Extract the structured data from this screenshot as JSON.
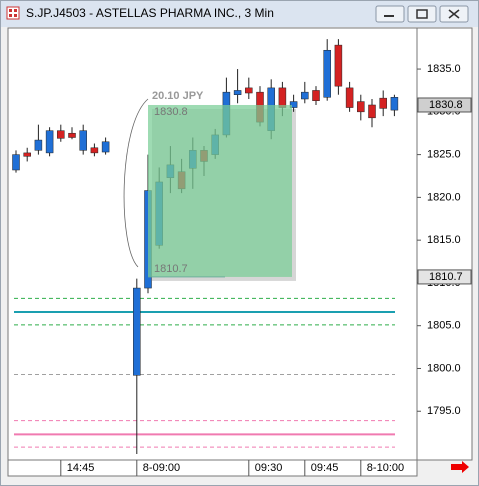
{
  "chart_data": {
    "type": "candlestick",
    "title": "S.JP.J4503 - ASTELLAS PHARMA INC., 3 Min",
    "categories": [
      null,
      null,
      null,
      null,
      "14:45",
      null,
      null,
      null,
      null,
      "8-09:00",
      null,
      null,
      null,
      null,
      null,
      null,
      null,
      null,
      null,
      "09:30",
      null,
      null,
      null,
      null,
      "09:45",
      null,
      null,
      null,
      null,
      "8-10:00",
      null,
      null,
      null
    ],
    "open": [
      1823.2,
      1825.2,
      1825.5,
      1825.2,
      1827.8,
      1827.5,
      1825.5,
      1825.8,
      1825.3,
      1799.2,
      1809.4,
      1814.4,
      1822.3,
      1823,
      1823.4,
      1825.5,
      1825,
      1827.3,
      1832,
      1832.8,
      1832.3,
      1827.8,
      1832.8,
      1830.5,
      1831.5,
      1832.5,
      1831.7,
      1837.8,
      1832.8,
      1831.2,
      1830.8,
      1831.6,
      1830.2
    ],
    "high": [
      1825.5,
      1825.8,
      1828.5,
      1828.2,
      1828.5,
      1828.2,
      1828.5,
      1826.3,
      1827,
      1810.5,
      1825,
      1823.5,
      1826,
      1824.5,
      1827,
      1826,
      1828,
      1834,
      1835,
      1834,
      1833,
      1833.8,
      1833.5,
      1832,
      1833.5,
      1833,
      1838.5,
      1838.5,
      1833.5,
      1832,
      1831.5,
      1832.5,
      1832
    ],
    "low": [
      1822.9,
      1824.2,
      1825,
      1824.8,
      1826.5,
      1826.8,
      1825,
      1824.8,
      1825,
      1790,
      1808.8,
      1814,
      1820.5,
      1820.5,
      1821,
      1822.5,
      1824.5,
      1827,
      1831,
      1831.5,
      1828.3,
      1826.8,
      1829.5,
      1830,
      1831,
      1830.8,
      1831.3,
      1832,
      1830,
      1829,
      1828.2,
      1829.5,
      1829.5
    ],
    "close": [
      1825,
      1824.8,
      1826.7,
      1827.8,
      1826.9,
      1827,
      1827.8,
      1825.2,
      1826.5,
      1809.4,
      1820.8,
      1821.8,
      1823.8,
      1821,
      1825.5,
      1824.2,
      1827.3,
      1832.3,
      1832.5,
      1832.2,
      1828.8,
      1832.8,
      1830.5,
      1831.2,
      1832.3,
      1831.3,
      1837.2,
      1833,
      1830.5,
      1830,
      1829.3,
      1830.4,
      1831.7
    ],
    "up_color": "#1f6fd6",
    "down_color": "#d42222",
    "ylim": [
      1789.3,
      1839.8
    ],
    "yticks": [
      {
        "value": 1795,
        "label": "1795.0"
      },
      {
        "value": 1800,
        "label": "1800.0"
      },
      {
        "value": 1805,
        "label": "1805.0"
      },
      {
        "value": 1810,
        "label": "1810.0"
      },
      {
        "value": 1815,
        "label": "1815.0"
      },
      {
        "value": 1820,
        "label": "1820.0"
      },
      {
        "value": 1825,
        "label": "1825.0"
      },
      {
        "value": 1830,
        "label": "1830.0"
      },
      {
        "value": 1835,
        "label": "1835.0"
      }
    ],
    "levels": [
      {
        "value": 1808.2,
        "color": "#2fae4a",
        "dash": "4,3"
      },
      {
        "value": 1806.6,
        "color": "#1a9fb0",
        "dash": "none"
      },
      {
        "value": 1805.1,
        "color": "#2fae4a",
        "dash": "4,3"
      },
      {
        "value": 1799.3,
        "color": "#a0a0a0",
        "dash": "4,3"
      },
      {
        "value": 1793.9,
        "color": "#f07ab0",
        "dash": "4,3"
      },
      {
        "value": 1792.3,
        "color": "#f07ab0",
        "dash": "none"
      },
      {
        "value": 1790.8,
        "color": "#f07ab0",
        "dash": "4,3"
      }
    ],
    "measure": {
      "label": "20.10 JPY",
      "to": 1830.8,
      "from": 1810.7
    },
    "price_markers": [
      1830.8,
      1810.7
    ]
  }
}
